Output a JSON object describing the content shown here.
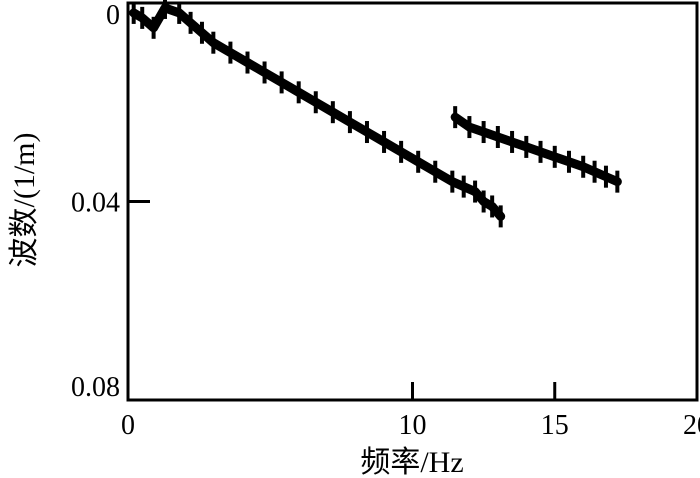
{
  "chart_data": {
    "type": "scatter",
    "title": "",
    "xlabel": "频率/Hz",
    "ylabel": "波数/(1/m)",
    "xlim": [
      0,
      20
    ],
    "ylim": [
      0,
      0.08
    ],
    "y_inverted": true,
    "grid": false,
    "x_ticks": [
      {
        "value": 0,
        "label": "0"
      },
      {
        "value": 10,
        "label": "10"
      },
      {
        "value": 15,
        "label": "15"
      },
      {
        "value": 20,
        "label": "20"
      }
    ],
    "y_ticks": [
      {
        "value": 0,
        "label": "0"
      },
      {
        "value": 0.04,
        "label": "0.04"
      },
      {
        "value": 0.08,
        "label": "0.08"
      }
    ],
    "series": [
      {
        "color": "#000000",
        "x": [
          0.2,
          0.5,
          0.9,
          1.3,
          1.8,
          2.2,
          2.6,
          3.0,
          3.6,
          4.2,
          4.8,
          5.4,
          6.0,
          6.6,
          7.2,
          7.8,
          8.4,
          9.0,
          9.6,
          10.2,
          10.8,
          11.4,
          11.8,
          12.2,
          12.5,
          12.8,
          13.1
        ],
        "y": [
          0.002,
          0.003,
          0.005,
          0.001,
          0.002,
          0.004,
          0.006,
          0.008,
          0.01,
          0.012,
          0.014,
          0.016,
          0.018,
          0.02,
          0.022,
          0.024,
          0.026,
          0.028,
          0.03,
          0.032,
          0.034,
          0.036,
          0.037,
          0.038,
          0.04,
          0.041,
          0.043
        ]
      },
      {
        "color": "#000000",
        "x": [
          11.5,
          12.0,
          12.5,
          13.0,
          13.5,
          14.0,
          14.5,
          15.0,
          15.5,
          16.0,
          16.4,
          16.8,
          17.2
        ],
        "y": [
          0.023,
          0.025,
          0.026,
          0.027,
          0.028,
          0.029,
          0.03,
          0.031,
          0.032,
          0.033,
          0.034,
          0.035,
          0.036
        ]
      }
    ]
  }
}
